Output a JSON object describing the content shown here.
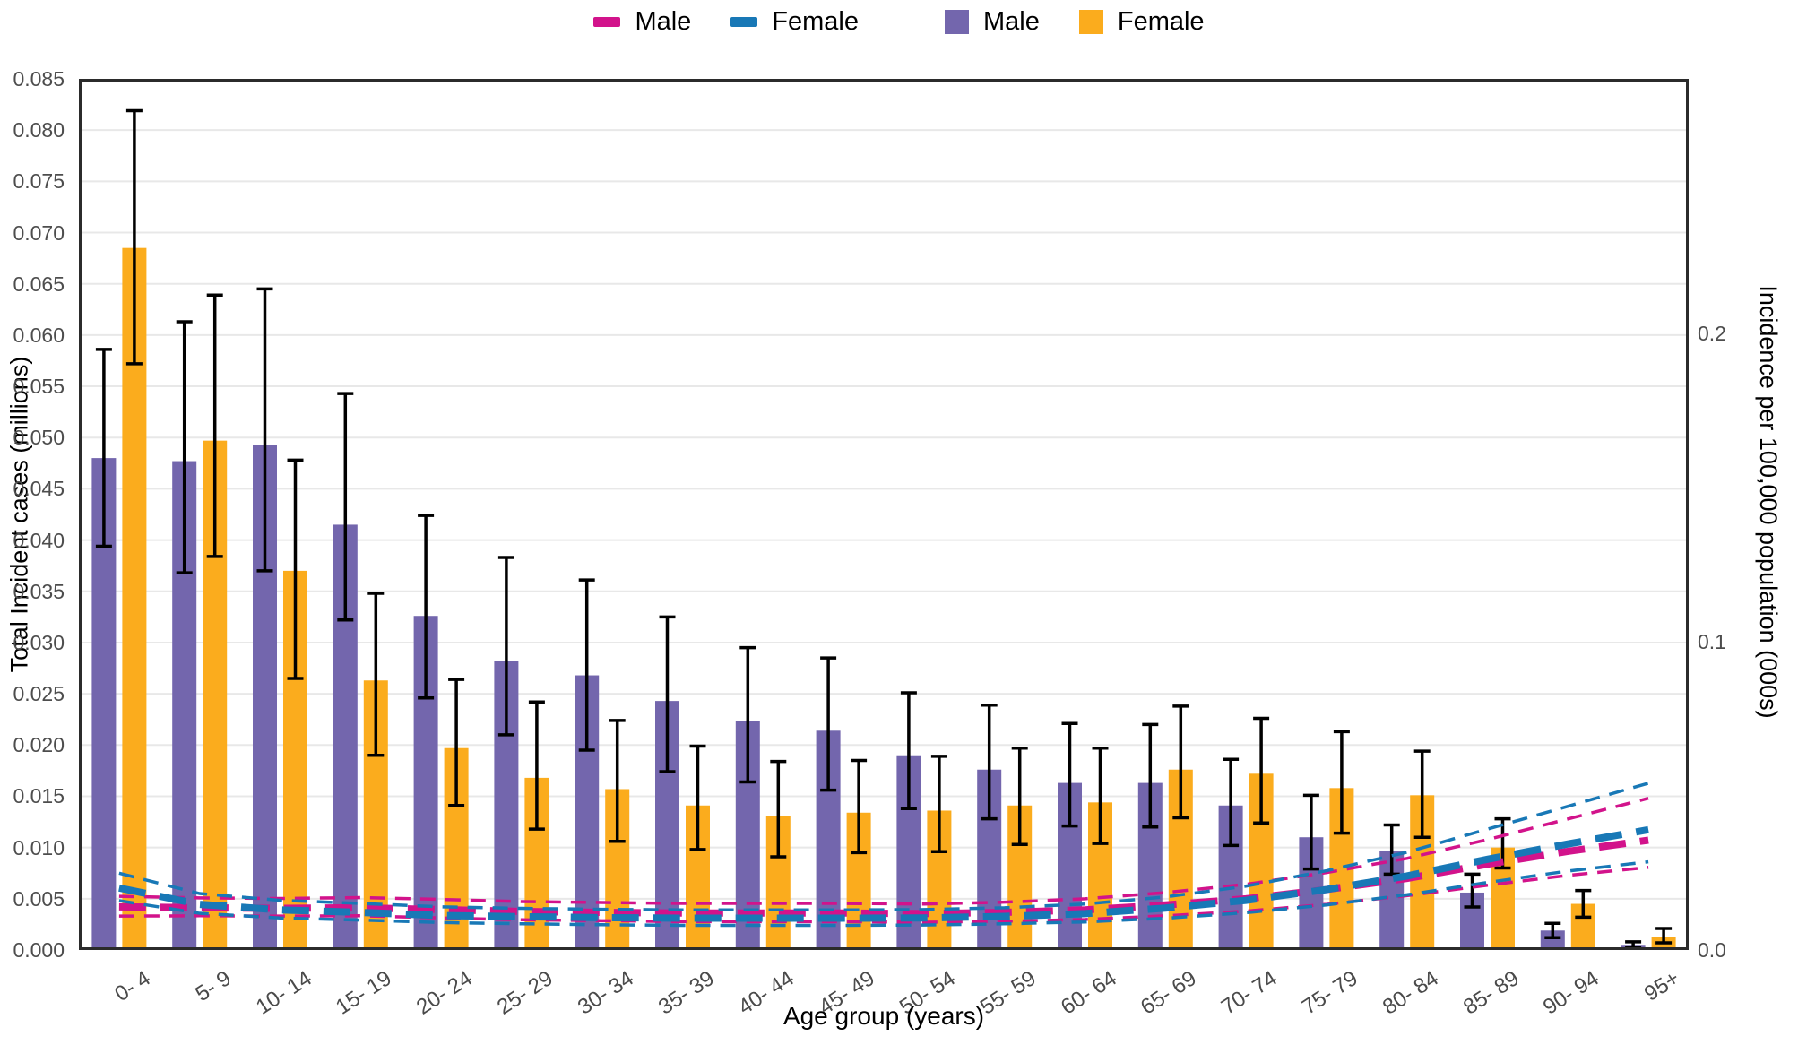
{
  "legend": {
    "line_male_label": "Male",
    "line_female_label": "Female",
    "bar_male_label": "Male",
    "bar_female_label": "Female"
  },
  "colors": {
    "bar_male": "#7366AD",
    "bar_female": "#FBAC1D",
    "line_male": "#D2138B",
    "line_female": "#1878B6",
    "error_bar": "#000000",
    "grid": "#E8E8E8",
    "axis_border": "#2B2B2B",
    "tick_text": "#4D4D4D"
  },
  "axes": {
    "left": {
      "title": "Total Incident cases (millions)",
      "tick_values": [
        0.0,
        0.005,
        0.01,
        0.015,
        0.02,
        0.025,
        0.03,
        0.035,
        0.04,
        0.045,
        0.05,
        0.055,
        0.06,
        0.065,
        0.07,
        0.075,
        0.08,
        0.085
      ],
      "tick_labels": [
        "0.000",
        "0.005",
        "0.010",
        "0.015",
        "0.020",
        "0.025",
        "0.030",
        "0.035",
        "0.040",
        "0.045",
        "0.050",
        "0.055",
        "0.060",
        "0.065",
        "0.070",
        "0.075",
        "0.080",
        "0.085"
      ]
    },
    "right": {
      "title": "Incidence per 100,000 population (000s)",
      "tick_values": [
        0.0,
        0.1,
        0.2
      ],
      "tick_labels": [
        "0.0",
        "0.1",
        "0.2"
      ]
    },
    "x": {
      "title": "Age group (years)"
    }
  },
  "chart_data": {
    "type": [
      "bar",
      "line"
    ],
    "title": "",
    "xlabel": "Age group (years)",
    "ylabel_left": "Total Incident cases (millions)",
    "ylabel_right": "Incidence per 100,000 population (000s)",
    "ylim_left": [
      0,
      0.085
    ],
    "ylim_right": [
      0,
      0.2825
    ],
    "right_axis_shown_ticks": [
      0.0,
      0.1,
      0.2
    ],
    "grid": true,
    "legend_position": "top",
    "categories": [
      "0- 4",
      "5- 9",
      "10- 14",
      "15- 19",
      "20- 24",
      "25- 29",
      "30- 34",
      "35- 39",
      "40- 44",
      "45- 49",
      "50- 54",
      "55- 59",
      "60- 64",
      "65- 69",
      "70- 74",
      "75- 79",
      "80- 84",
      "85- 89",
      "90- 94",
      "95+"
    ],
    "bar_series": [
      {
        "name": "Male",
        "axis": "left",
        "values": [
          0.048,
          0.0477,
          0.0493,
          0.0415,
          0.0326,
          0.0282,
          0.0268,
          0.0243,
          0.0223,
          0.0214,
          0.019,
          0.0176,
          0.0163,
          0.0163,
          0.0141,
          0.011,
          0.0097,
          0.0056,
          0.0019,
          0.0005
        ],
        "ci_low": [
          0.0394,
          0.0368,
          0.037,
          0.0322,
          0.0246,
          0.021,
          0.0195,
          0.0174,
          0.0164,
          0.0156,
          0.0138,
          0.0128,
          0.0121,
          0.012,
          0.0102,
          0.0079,
          0.0074,
          0.0042,
          0.0012,
          0.0002
        ],
        "ci_high": [
          0.0586,
          0.0613,
          0.0645,
          0.0543,
          0.0424,
          0.0383,
          0.0361,
          0.0325,
          0.0295,
          0.0285,
          0.0251,
          0.0239,
          0.0221,
          0.022,
          0.0186,
          0.0151,
          0.0122,
          0.0074,
          0.0026,
          0.0008
        ]
      },
      {
        "name": "Female",
        "axis": "left",
        "values": [
          0.0685,
          0.0497,
          0.037,
          0.0263,
          0.0197,
          0.0168,
          0.0157,
          0.0141,
          0.0131,
          0.0134,
          0.0136,
          0.0141,
          0.0144,
          0.0176,
          0.0172,
          0.0158,
          0.0151,
          0.01,
          0.0045,
          0.0013
        ],
        "ci_low": [
          0.0572,
          0.0384,
          0.0265,
          0.019,
          0.0141,
          0.0118,
          0.0106,
          0.0098,
          0.0091,
          0.0095,
          0.0096,
          0.0103,
          0.0104,
          0.0129,
          0.0124,
          0.0114,
          0.011,
          0.008,
          0.0032,
          0.0007
        ],
        "ci_high": [
          0.0819,
          0.0639,
          0.0478,
          0.0348,
          0.0264,
          0.0242,
          0.0224,
          0.0199,
          0.0184,
          0.0185,
          0.0189,
          0.0197,
          0.0197,
          0.0238,
          0.0226,
          0.0213,
          0.0194,
          0.0128,
          0.0058,
          0.0021
        ]
      }
    ],
    "line_series": [
      {
        "name": "Male",
        "axis": "right",
        "values": [
          0.014,
          0.0137,
          0.0135,
          0.0137,
          0.0131,
          0.0125,
          0.0122,
          0.012,
          0.012,
          0.012,
          0.0118,
          0.0122,
          0.013,
          0.0146,
          0.0166,
          0.0196,
          0.0232,
          0.0278,
          0.032,
          0.0356
        ],
        "ci_low": [
          0.011,
          0.0111,
          0.011,
          0.0111,
          0.0104,
          0.0098,
          0.0095,
          0.0092,
          0.0092,
          0.0092,
          0.009,
          0.0093,
          0.0099,
          0.0111,
          0.0126,
          0.0148,
          0.0176,
          0.021,
          0.0242,
          0.0268
        ],
        "ci_high": [
          0.0174,
          0.0169,
          0.0167,
          0.017,
          0.0164,
          0.0157,
          0.0154,
          0.0151,
          0.0151,
          0.0151,
          0.0149,
          0.0155,
          0.0166,
          0.0186,
          0.0213,
          0.0251,
          0.0297,
          0.0358,
          0.0425,
          0.0492
        ]
      },
      {
        "name": "Female",
        "axis": "right",
        "values": [
          0.0201,
          0.0148,
          0.013,
          0.0122,
          0.0112,
          0.0108,
          0.0105,
          0.0103,
          0.0103,
          0.0103,
          0.0104,
          0.0109,
          0.0118,
          0.0136,
          0.0161,
          0.0196,
          0.024,
          0.0294,
          0.0344,
          0.039
        ],
        "ci_low": [
          0.016,
          0.0119,
          0.0104,
          0.0097,
          0.0089,
          0.0085,
          0.0082,
          0.008,
          0.008,
          0.008,
          0.0081,
          0.0085,
          0.0091,
          0.0103,
          0.0121,
          0.0146,
          0.0179,
          0.0219,
          0.0256,
          0.0286
        ],
        "ci_high": [
          0.0249,
          0.0183,
          0.0161,
          0.0151,
          0.014,
          0.0135,
          0.0132,
          0.013,
          0.013,
          0.013,
          0.0131,
          0.0137,
          0.0149,
          0.0172,
          0.0207,
          0.0257,
          0.0317,
          0.0392,
          0.0466,
          0.0541
        ]
      }
    ]
  }
}
